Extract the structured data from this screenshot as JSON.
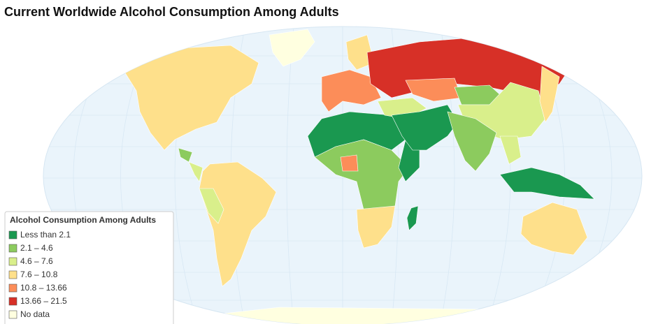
{
  "title": "Current Worldwide Alcohol Consumption Among Adults",
  "legend": {
    "title": "Alcohol Consumption Among Adults",
    "items": [
      {
        "label": "Less than 2.1",
        "color": "#1a9850"
      },
      {
        "label": "2.1 – 4.6",
        "color": "#8ccb5e"
      },
      {
        "label": "4.6 – 7.6",
        "color": "#d9ef8b"
      },
      {
        "label": "7.6 – 10.8",
        "color": "#fee08b"
      },
      {
        "label": "10.8 – 13.66",
        "color": "#fc8d59"
      },
      {
        "label": "13.66 – 21.5",
        "color": "#d73027"
      },
      {
        "label": "No data",
        "color": "#ffffe0"
      }
    ]
  }
}
